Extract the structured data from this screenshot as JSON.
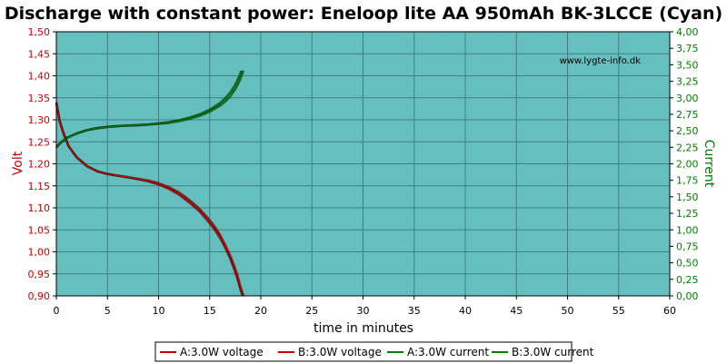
{
  "chart_data": {
    "type": "line",
    "title": "Discharge with constant power: Eneloop lite AA 950mAh BK-3LCCE (Cyan)",
    "xlabel": "time in minutes",
    "ylabel_left": "Volt",
    "ylabel_right": "Current",
    "watermark": "www.lygte-info.dk",
    "xlim": [
      0,
      60
    ],
    "xticks": [
      "0",
      "5",
      "10",
      "15",
      "20",
      "25",
      "30",
      "35",
      "40",
      "45",
      "50",
      "55",
      "60"
    ],
    "ylim_left": [
      0.9,
      1.5
    ],
    "yticks_left": [
      "0,90",
      "0,95",
      "1,00",
      "1,05",
      "1,10",
      "1,15",
      "1,20",
      "1,25",
      "1,30",
      "1,35",
      "1,40",
      "1,45",
      "1,50"
    ],
    "ylim_right": [
      0,
      4
    ],
    "yticks_right": [
      "0,00",
      "0,25",
      "0,50",
      "0,75",
      "1,00",
      "1,25",
      "1,50",
      "1,75",
      "2,00",
      "2,25",
      "2,50",
      "2,75",
      "3,00",
      "3,25",
      "3,50",
      "3,75",
      "4,00"
    ],
    "grid": true,
    "legend_position": "bottom",
    "colors": {
      "plot_background": "#66bfbf",
      "grid": "#3d8080",
      "voltage": "#cc0000",
      "current": "#008000",
      "left_axis_text": "#cc0000",
      "right_axis_text": "#008000"
    },
    "series": [
      {
        "name": "A:3.0W voltage",
        "axis": "left",
        "color": "#cc0000",
        "x": [
          0,
          0.3,
          0.7,
          1.2,
          2,
          3,
          4,
          5,
          6,
          7,
          8,
          9,
          10,
          11,
          12,
          13,
          14,
          15,
          15.5,
          16,
          16.5,
          17,
          17.4,
          17.7,
          18,
          18.2
        ],
        "y": [
          1.34,
          1.3,
          1.27,
          1.24,
          1.215,
          1.195,
          1.183,
          1.177,
          1.173,
          1.169,
          1.165,
          1.16,
          1.153,
          1.143,
          1.13,
          1.112,
          1.092,
          1.065,
          1.05,
          1.032,
          1.01,
          0.985,
          0.96,
          0.94,
          0.915,
          0.9
        ]
      },
      {
        "name": "B:3.0W voltage",
        "axis": "left",
        "color": "#cc0000",
        "x": [
          0,
          0.3,
          0.7,
          1.2,
          2,
          3,
          4,
          5,
          6,
          7,
          8,
          9,
          10,
          11,
          12,
          13,
          14,
          15,
          15.5,
          16,
          16.5,
          17,
          17.4,
          17.7,
          18,
          18.3
        ],
        "y": [
          1.338,
          1.298,
          1.268,
          1.24,
          1.214,
          1.194,
          1.183,
          1.177,
          1.173,
          1.17,
          1.166,
          1.162,
          1.156,
          1.147,
          1.135,
          1.118,
          1.098,
          1.072,
          1.057,
          1.039,
          1.017,
          0.992,
          0.968,
          0.948,
          0.922,
          0.9
        ]
      },
      {
        "name": "A:3.0W current",
        "axis": "right",
        "color": "#008000",
        "x": [
          0,
          0.5,
          1,
          2,
          3,
          4,
          5,
          6,
          7,
          8,
          9,
          10,
          11,
          12,
          13,
          14,
          15,
          16,
          16.5,
          17,
          17.5,
          17.9,
          18.1
        ],
        "y": [
          2.25,
          2.33,
          2.39,
          2.46,
          2.51,
          2.54,
          2.56,
          2.57,
          2.58,
          2.585,
          2.595,
          2.61,
          2.63,
          2.66,
          2.7,
          2.75,
          2.82,
          2.92,
          2.99,
          3.08,
          3.2,
          3.33,
          3.41
        ]
      },
      {
        "name": "B:3.0W current",
        "axis": "right",
        "color": "#008000",
        "x": [
          0,
          0.5,
          1,
          2,
          3,
          4,
          5,
          6,
          7,
          8,
          9,
          10,
          11,
          12,
          13,
          14,
          15,
          16,
          16.5,
          17,
          17.5,
          17.9,
          18.3
        ],
        "y": [
          2.25,
          2.33,
          2.39,
          2.46,
          2.51,
          2.54,
          2.56,
          2.57,
          2.58,
          2.585,
          2.595,
          2.605,
          2.62,
          2.645,
          2.68,
          2.725,
          2.79,
          2.88,
          2.94,
          3.02,
          3.13,
          3.25,
          3.41
        ]
      }
    ]
  }
}
